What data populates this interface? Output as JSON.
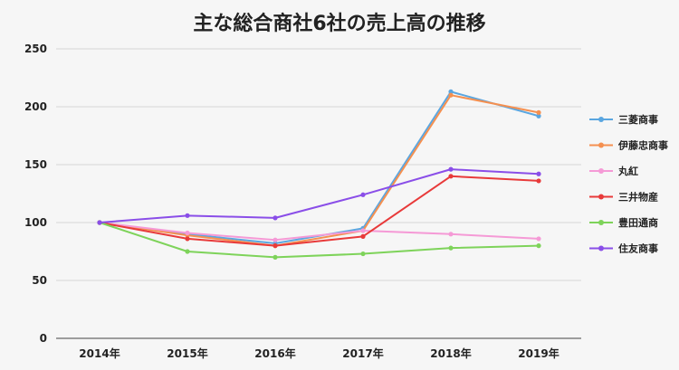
{
  "chart_data": {
    "type": "line",
    "title": "主な総合商社6社の売上高の推移",
    "categories": [
      "2014年",
      "2015年",
      "2016年",
      "2017年",
      "2018年",
      "2019年"
    ],
    "ylim": [
      0,
      250
    ],
    "yticks": [
      0,
      50,
      100,
      150,
      200,
      250
    ],
    "grid": true,
    "legend_position": "right",
    "series": [
      {
        "name": "三菱商事",
        "color": "#5aa6e0",
        "values": [
          100,
          90,
          82,
          95,
          213,
          192
        ]
      },
      {
        "name": "伊藤忠商事",
        "color": "#f59050",
        "values": [
          100,
          89,
          80,
          93,
          210,
          195
        ]
      },
      {
        "name": "丸紅",
        "color": "#f59ad6",
        "values": [
          100,
          91,
          85,
          93,
          90,
          86
        ]
      },
      {
        "name": "三井物産",
        "color": "#e83a3a",
        "values": [
          100,
          86,
          80,
          88,
          140,
          136
        ]
      },
      {
        "name": "豊田通商",
        "color": "#7ed35a",
        "values": [
          100,
          75,
          70,
          73,
          78,
          80
        ]
      },
      {
        "name": "住友商事",
        "color": "#8a4ee8",
        "values": [
          100,
          106,
          104,
          124,
          146,
          142
        ]
      }
    ]
  }
}
